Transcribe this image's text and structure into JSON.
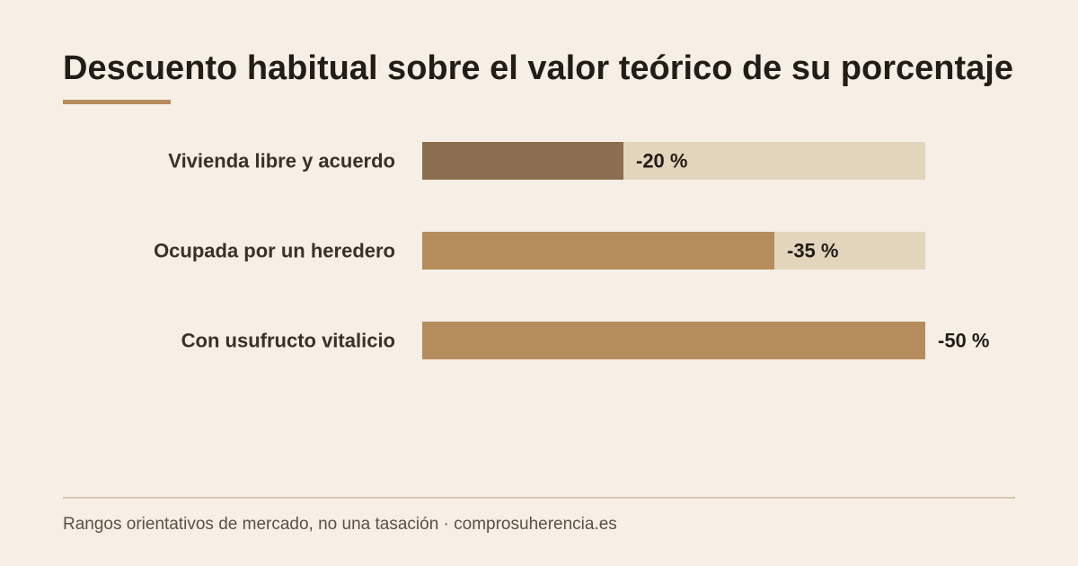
{
  "title": "Descuento habitual sobre el valor teórico de su porcentaje",
  "footer": "Rangos orientativos de mercado, no una tasación · comprosuherencia.es",
  "colors": {
    "background": "#f5efe5",
    "track": "#e3d4bc",
    "bar_primary": "#b58c5b",
    "bar_highlight": "#8b6e4f",
    "accent_rule": "#b58c5b",
    "label": "#3b302a"
  },
  "chart_data": {
    "type": "bar",
    "orientation": "horizontal",
    "categories": [
      "Vivienda libre y acuerdo",
      "Ocupada por un heredero",
      "Con usufructo vitalicio"
    ],
    "values": [
      -20,
      -35,
      -50
    ],
    "value_labels": [
      "-20 %",
      "-35 %",
      "-50 %"
    ],
    "unit": "%",
    "xlim": [
      0,
      50
    ],
    "highlighted_category": "Vivienda libre y acuerdo",
    "grid": false,
    "legend": "none"
  }
}
